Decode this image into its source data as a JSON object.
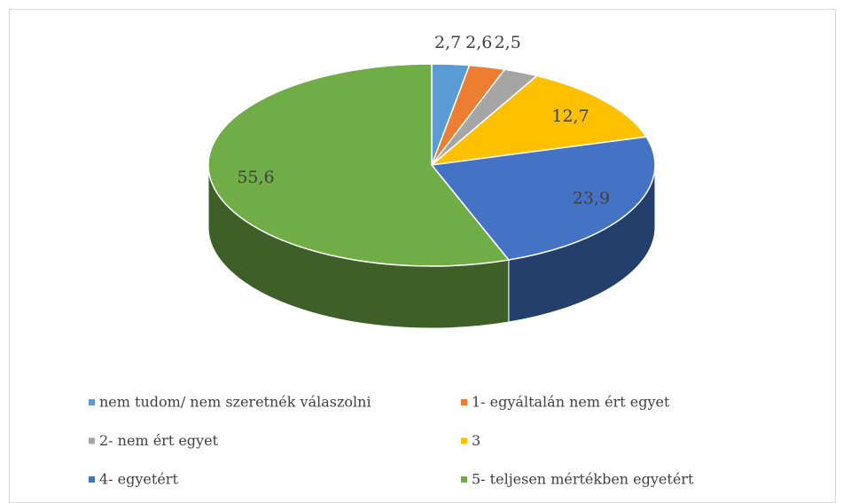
{
  "chart_data": {
    "type": "pie3d",
    "categories": [
      "nem tudom/ nem szeretnék válaszolni",
      "1- egyáltalán nem ért egyet",
      "2- nem ért egyet",
      "3",
      "4- egyetért",
      "5- teljesen mértékben egyetért"
    ],
    "values": [
      2.7,
      2.6,
      2.5,
      12.7,
      23.9,
      55.6
    ],
    "value_labels": [
      "2,7",
      "2,6",
      "2,5",
      "12,7",
      "23,9",
      "55,6"
    ],
    "colors": [
      "#5b9bd5",
      "#ed7d31",
      "#a5a5a5",
      "#ffc000",
      "#4472c4",
      "#70ad47"
    ],
    "legend": "bottom"
  }
}
